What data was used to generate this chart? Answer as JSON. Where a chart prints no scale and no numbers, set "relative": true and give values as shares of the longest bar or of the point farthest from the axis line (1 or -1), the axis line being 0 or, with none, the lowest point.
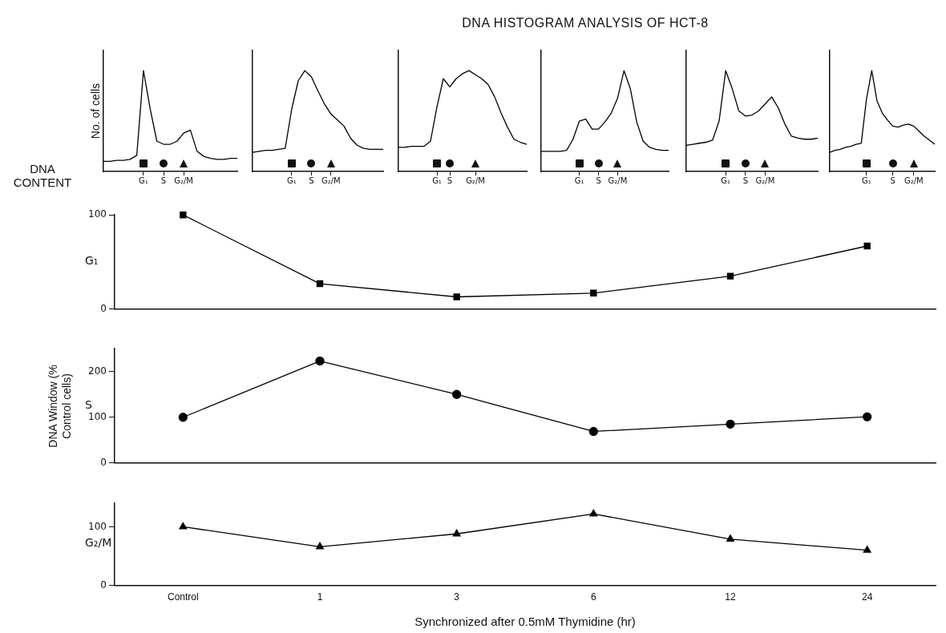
{
  "chart_data": [
    {
      "type": "other",
      "title": "DNA HISTOGRAM ANALYSIS OF HCT-8"
    },
    {
      "type": "line",
      "xlabel": "DNA CONTENT",
      "ylabel": "No. of cells",
      "relative": true,
      "categories": [
        null,
        null,
        null,
        null,
        null,
        null,
        "G₁",
        null,
        null,
        "S",
        null,
        null,
        "G₂/M",
        null,
        null,
        null,
        null,
        null,
        null,
        null,
        null
      ],
      "series": [
        {
          "color": "#000000",
          "values": [
            0.1,
            0.1,
            0.11,
            0.11,
            0.12,
            0.16,
            1.0,
            0.62,
            0.3,
            0.27,
            0.27,
            0.3,
            0.38,
            0.41,
            0.2,
            0.15,
            0.13,
            0.12,
            0.12,
            0.13,
            0.13
          ]
        }
      ]
    },
    {
      "type": "line",
      "relative": true,
      "categories": [
        null,
        null,
        null,
        null,
        null,
        null,
        "G₁",
        null,
        null,
        "S",
        null,
        null,
        "G₂/M",
        null,
        null,
        null,
        null,
        null,
        null,
        null,
        null
      ],
      "series": [
        {
          "color": "#000000",
          "values": [
            0.19,
            0.2,
            0.21,
            0.21,
            0.22,
            0.23,
            0.62,
            0.9,
            1.0,
            0.94,
            0.8,
            0.67,
            0.57,
            0.51,
            0.45,
            0.33,
            0.26,
            0.23,
            0.22,
            0.22,
            0.22
          ]
        }
      ]
    },
    {
      "type": "line",
      "relative": true,
      "categories": [
        null,
        null,
        null,
        null,
        null,
        null,
        "G₁",
        null,
        "S",
        null,
        null,
        null,
        "G₂/M",
        null,
        null,
        null,
        null,
        null,
        null,
        null,
        null
      ],
      "series": [
        {
          "color": "#000000",
          "values": [
            0.24,
            0.24,
            0.25,
            0.25,
            0.25,
            0.3,
            0.64,
            0.92,
            0.84,
            0.92,
            0.97,
            1.0,
            0.96,
            0.92,
            0.86,
            0.74,
            0.58,
            0.44,
            0.32,
            0.29,
            0.27
          ]
        }
      ]
    },
    {
      "type": "line",
      "relative": true,
      "categories": [
        null,
        null,
        null,
        null,
        null,
        null,
        "G₁",
        null,
        null,
        "S",
        null,
        null,
        "G₂/M",
        null,
        null,
        null,
        null,
        null,
        null,
        null,
        null
      ],
      "series": [
        {
          "color": "#000000",
          "values": [
            0.2,
            0.2,
            0.2,
            0.2,
            0.21,
            0.32,
            0.5,
            0.52,
            0.42,
            0.42,
            0.49,
            0.58,
            0.73,
            1.0,
            0.82,
            0.49,
            0.3,
            0.24,
            0.22,
            0.21,
            0.21
          ]
        }
      ]
    },
    {
      "type": "line",
      "relative": true,
      "categories": [
        null,
        null,
        null,
        null,
        null,
        null,
        "G₁",
        null,
        null,
        "S",
        null,
        null,
        "G₂/M",
        null,
        null,
        null,
        null,
        null,
        null,
        null,
        null
      ],
      "series": [
        {
          "color": "#000000",
          "values": [
            0.26,
            0.27,
            0.28,
            0.29,
            0.31,
            0.5,
            1.0,
            0.82,
            0.6,
            0.55,
            0.56,
            0.6,
            0.67,
            0.74,
            0.63,
            0.47,
            0.35,
            0.33,
            0.32,
            0.32,
            0.33
          ]
        }
      ]
    },
    {
      "type": "line",
      "relative": true,
      "categories": [
        null,
        null,
        null,
        null,
        null,
        null,
        null,
        "G₁",
        null,
        null,
        null,
        null,
        "S",
        null,
        null,
        null,
        "G₂/M",
        null,
        null,
        null,
        null
      ],
      "series": [
        {
          "color": "#000000",
          "values": [
            0.19,
            0.21,
            0.22,
            0.24,
            0.25,
            0.27,
            0.28,
            0.72,
            1.0,
            0.7,
            0.58,
            0.51,
            0.45,
            0.44,
            0.46,
            0.47,
            0.45,
            0.4,
            0.35,
            0.31,
            0.27
          ]
        }
      ]
    },
    {
      "type": "line",
      "categories": [
        null,
        null,
        null,
        null,
        null,
        null
      ],
      "ylim": [
        0,
        100
      ],
      "yticks": [
        0,
        100
      ],
      "tick_labels": "y",
      "marker": "square",
      "series": [
        {
          "name": "G₁",
          "color": "#000000",
          "values": [
            100,
            27,
            13,
            17,
            35,
            67
          ]
        }
      ]
    },
    {
      "type": "line",
      "categories": [
        null,
        null,
        null,
        null,
        null,
        null
      ],
      "ylim": [
        0,
        250
      ],
      "yticks": [
        0,
        100,
        200
      ],
      "tick_labels": "y",
      "marker": "circle",
      "ylabel": "DNA Window (% Control cells)",
      "series": [
        {
          "name": "S",
          "color": "#000000",
          "values": [
            100,
            223,
            150,
            69,
            85,
            101
          ]
        }
      ]
    },
    {
      "type": "line",
      "categories": [
        "Control",
        "1",
        "3",
        "6",
        "12",
        "24"
      ],
      "ylim": [
        0,
        140
      ],
      "yticks": [
        0,
        100
      ],
      "marker": "triangle",
      "xlabel": "Synchronized after 0.5mM Thymidine (hr)",
      "series": [
        {
          "name": "G₂/M",
          "color": "#000000",
          "values": [
            100,
            66,
            88,
            122,
            79,
            60
          ]
        }
      ]
    }
  ]
}
